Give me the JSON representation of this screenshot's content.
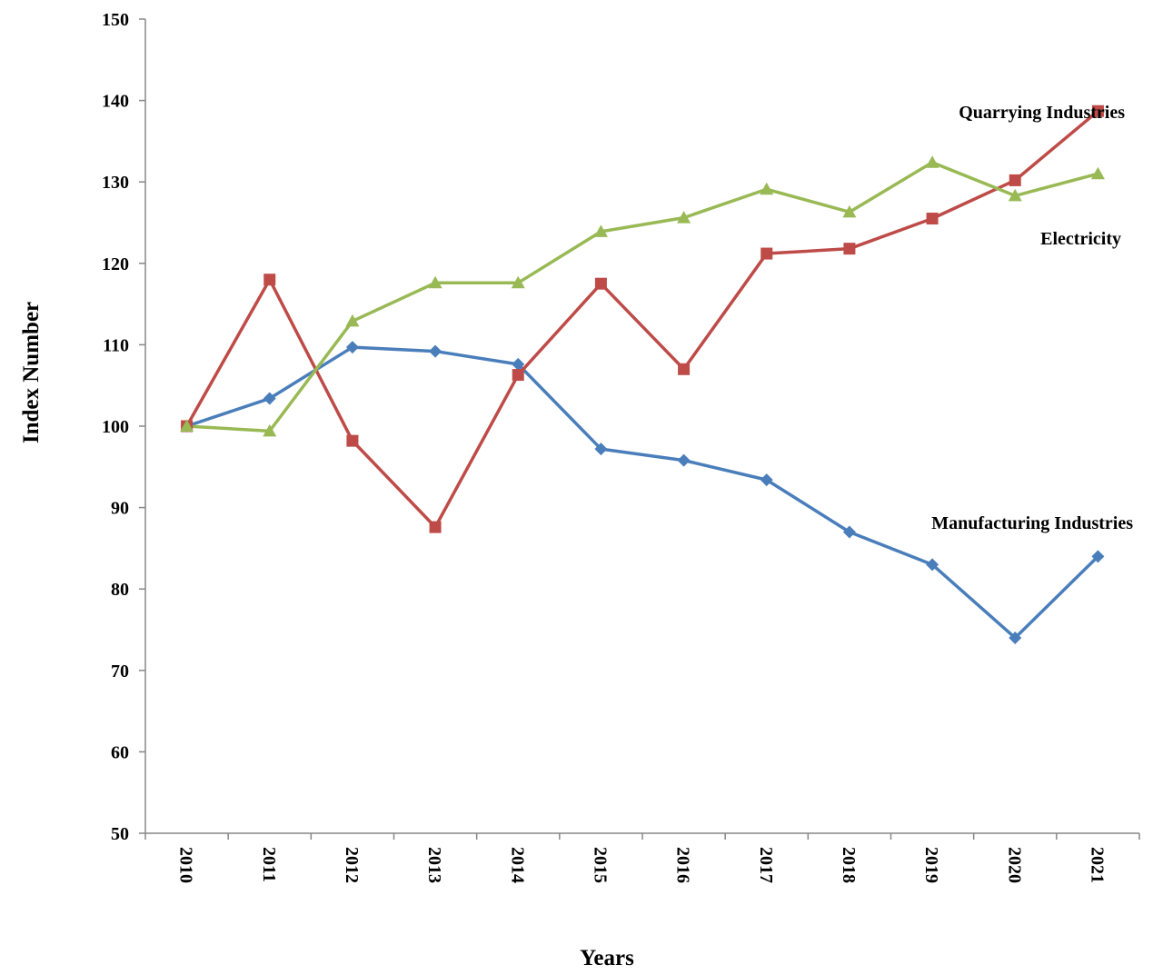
{
  "chart_data": {
    "type": "line",
    "xlabel": "Years",
    "ylabel": "Index Number",
    "ylim": [
      50,
      150
    ],
    "yticks": [
      "50",
      "60",
      "70",
      "80",
      "90",
      "100",
      "110",
      "120",
      "130",
      "140",
      "150"
    ],
    "categories": [
      "2010",
      "2011",
      "2012",
      "2013",
      "2014",
      "2015",
      "2016",
      "2017",
      "2018",
      "2019",
      "2020",
      "2021"
    ],
    "grid": false,
    "legend": "none (series labelled directly on chart)",
    "series": [
      {
        "name": "Manufacturing Industries",
        "color": "#4A7EBB",
        "marker": "diamond",
        "values": [
          100,
          103.4,
          109.7,
          109.2,
          107.6,
          97.2,
          95.8,
          93.4,
          87.0,
          83.0,
          74.0,
          84.0
        ]
      },
      {
        "name": "Quarrying Industries",
        "color": "#BE4B48",
        "marker": "square",
        "values": [
          100,
          118.0,
          98.2,
          87.6,
          106.3,
          117.5,
          107.0,
          121.2,
          121.8,
          125.5,
          130.2,
          138.7
        ]
      },
      {
        "name": "Electricity",
        "color": "#98B954",
        "marker": "triangle",
        "values": [
          100,
          99.4,
          112.9,
          117.6,
          117.6,
          123.9,
          125.6,
          129.1,
          126.3,
          132.4,
          128.3,
          131.0
        ]
      }
    ]
  }
}
